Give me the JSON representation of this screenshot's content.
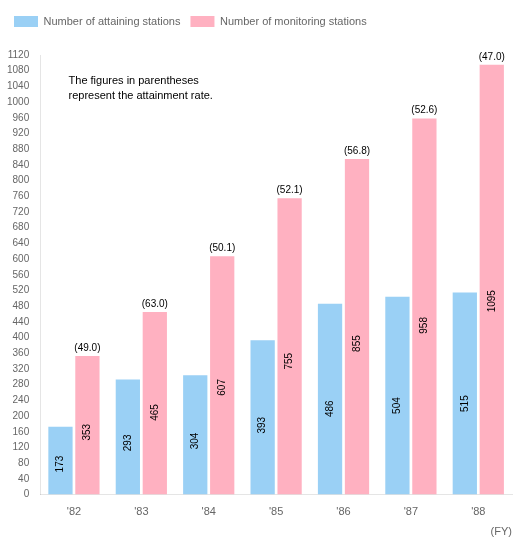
{
  "chart_data": {
    "type": "bar",
    "categories": [
      "'82",
      "'83",
      "'84",
      "'85",
      "'86",
      "'87",
      "'88"
    ],
    "series": [
      {
        "name": "Number of attaining stations",
        "values": [
          173,
          293,
          304,
          393,
          486,
          504,
          515
        ]
      },
      {
        "name": "Number of monitoring stations",
        "values": [
          353,
          465,
          607,
          755,
          855,
          958,
          1095
        ],
        "rate_labels": [
          "(49.0)",
          "(63.0)",
          "(50.1)",
          "(52.1)",
          "(56.8)",
          "(52.6)",
          "(47.0)"
        ]
      }
    ],
    "x_label": "(FY)",
    "annotations": [
      "The figures in parentheses",
      "represent the attainment rate."
    ],
    "ylim": [
      0,
      1120
    ],
    "yticks": [
      0,
      40,
      80,
      120,
      160,
      200,
      240,
      280,
      320,
      360,
      400,
      440,
      480,
      520,
      560,
      600,
      640,
      680,
      720,
      760,
      800,
      840,
      880,
      920,
      960,
      1000,
      1040,
      1080,
      1120
    ],
    "grid": false,
    "legend": "upper left",
    "data_labels": true
  }
}
